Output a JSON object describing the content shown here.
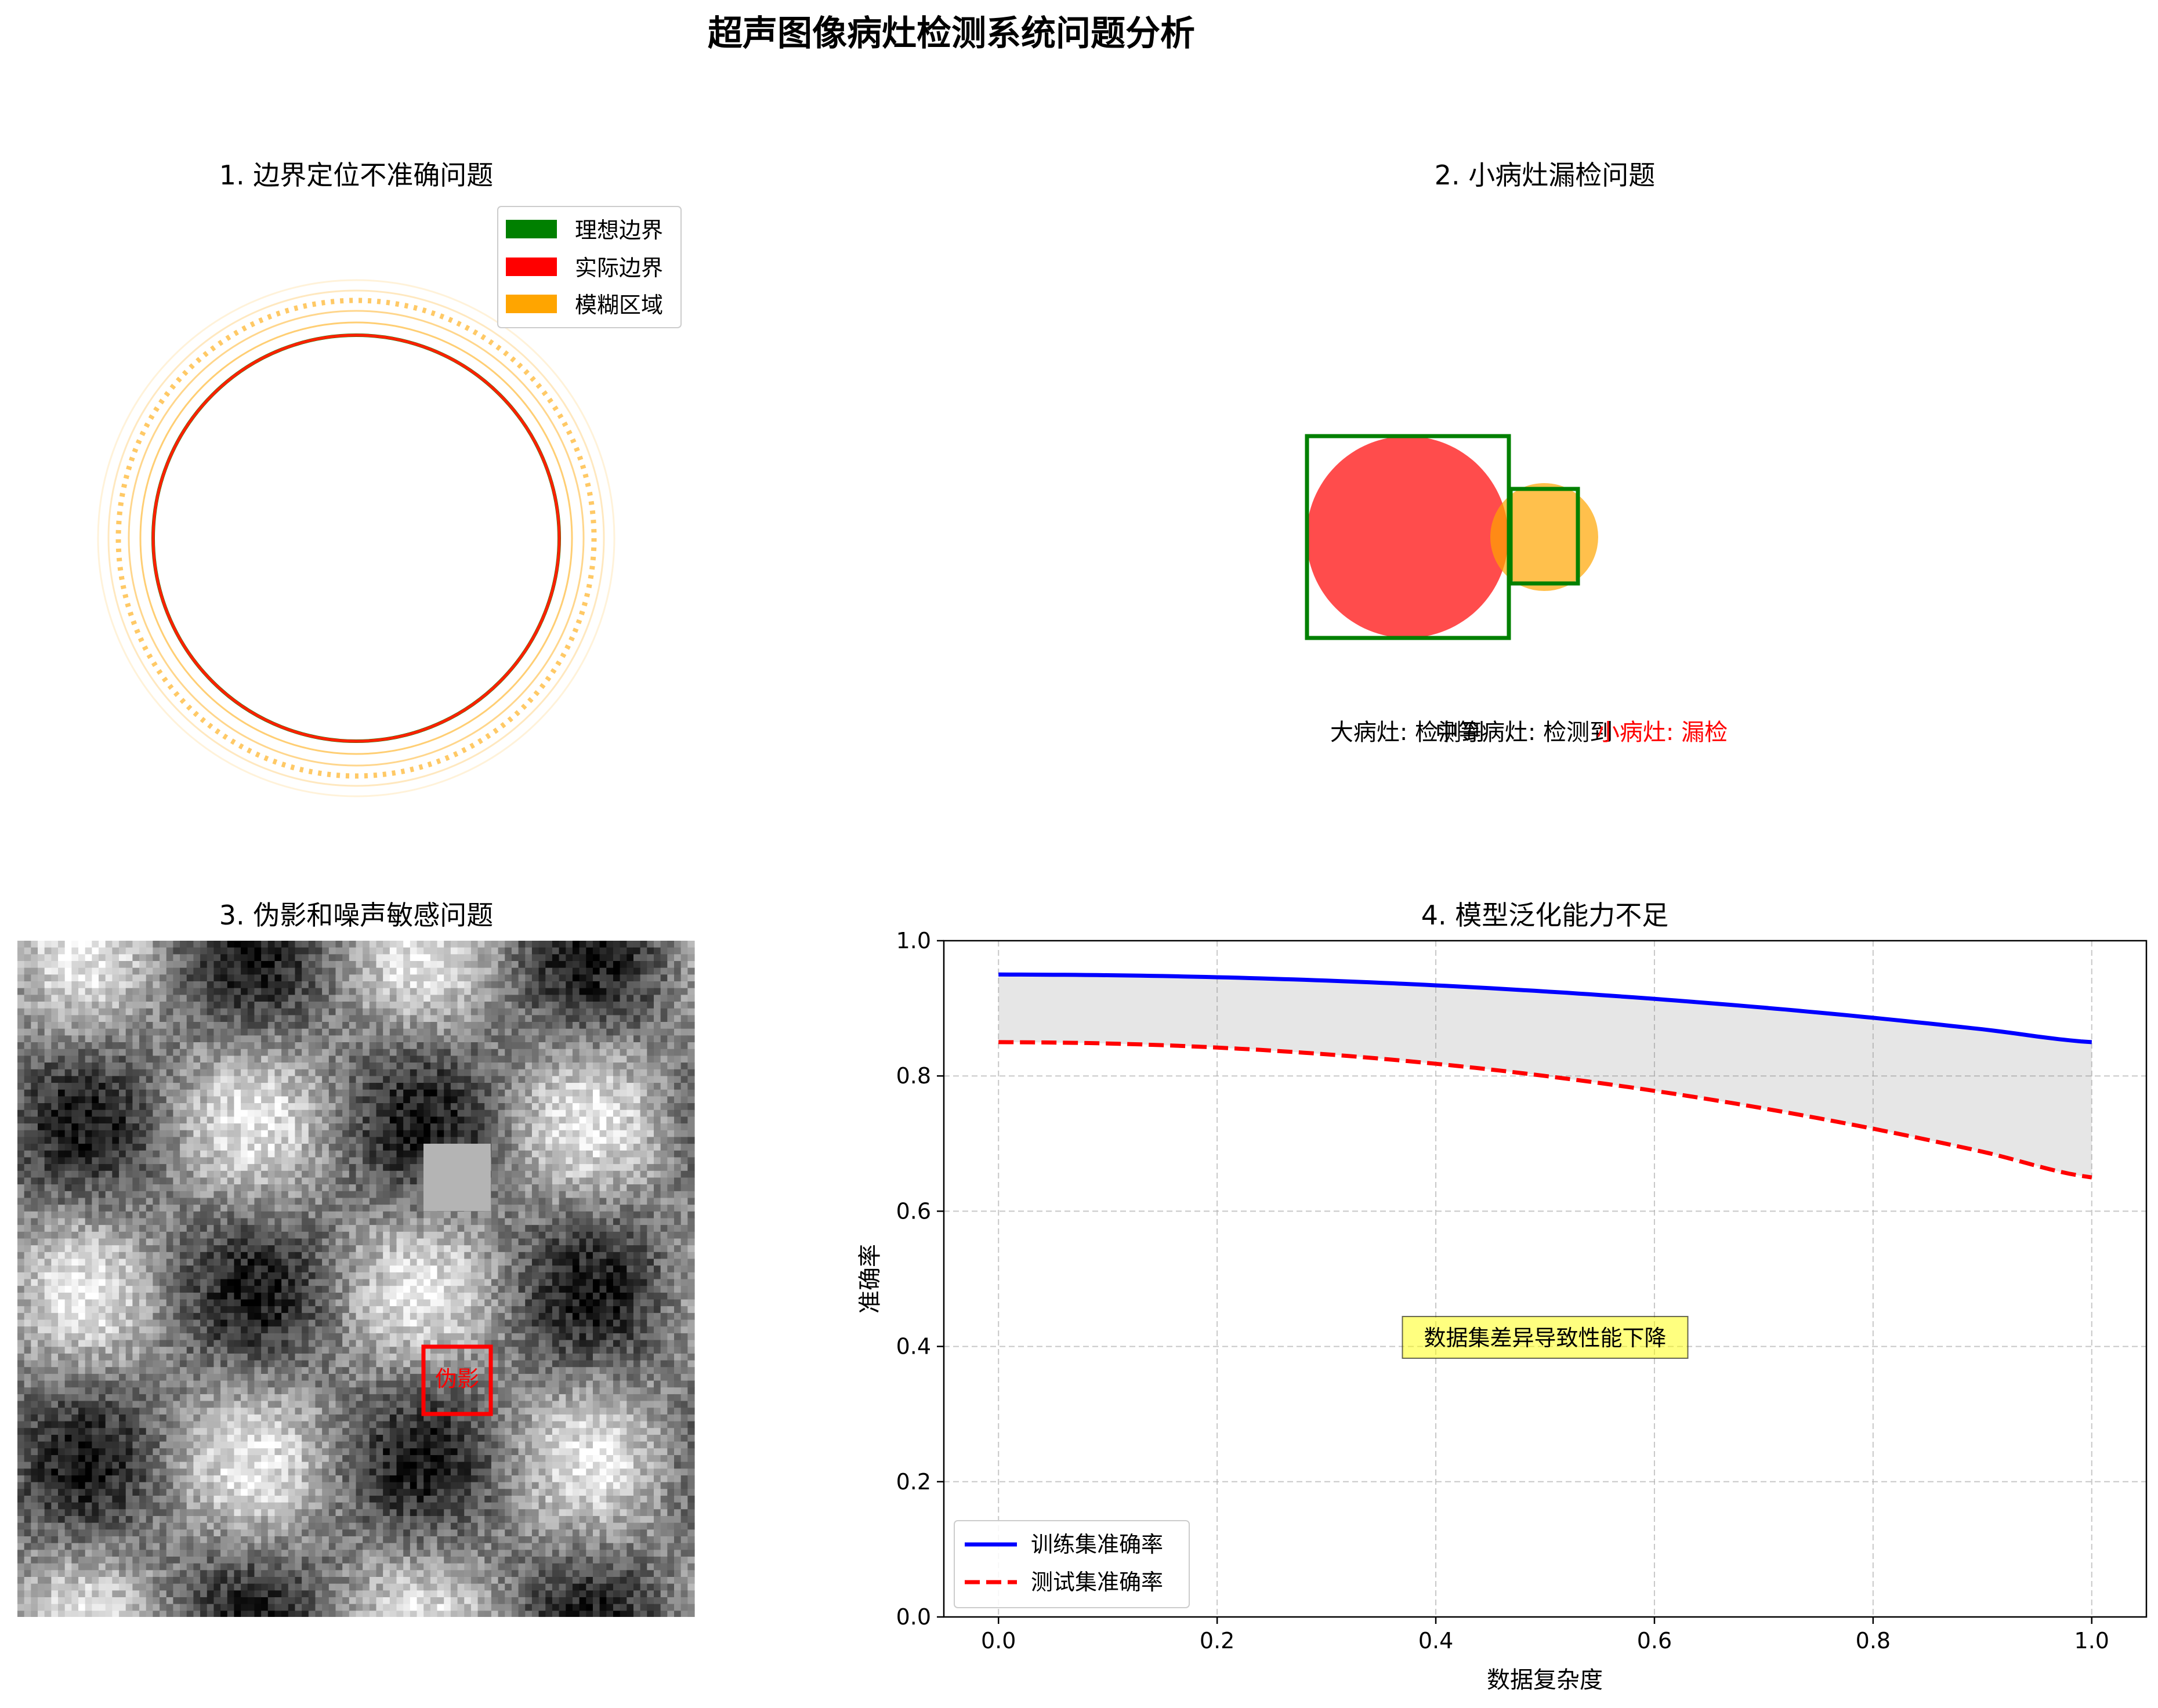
{
  "figure": {
    "title": "超声图像病灶检测系统问题分析"
  },
  "panel1": {
    "title": "1. 边界定位不准确问题",
    "legend": [
      {
        "label": "理想边界",
        "color": "#008000"
      },
      {
        "label": "实际边界",
        "color": "#ff0000"
      },
      {
        "label": "模糊区域",
        "color": "#ffa500"
      }
    ]
  },
  "panel2": {
    "title": "2. 小病灶漏检问题",
    "labels": [
      {
        "text": "大病灶: 检测到",
        "color": "#000000"
      },
      {
        "text": "中等病灶: 检测到",
        "color": "#000000"
      },
      {
        "text": "小病灶: 漏检",
        "color": "#ff0000"
      }
    ],
    "colors": {
      "large": "#ff0000",
      "medium": "#ffa500",
      "box": "#008000"
    }
  },
  "panel3": {
    "title": "3. 伪影和噪声敏感问题",
    "artifact_label": "伪影",
    "artifact_color": "#ff0000"
  },
  "chart_data": {
    "type": "line",
    "title": "4. 模型泛化能力不足",
    "xlabel": "数据复杂度",
    "ylabel": "准确率",
    "xlim": [
      -0.05,
      1.05
    ],
    "ylim": [
      0.0,
      1.0
    ],
    "xticks": [
      "0.0",
      "0.2",
      "0.4",
      "0.6",
      "0.8",
      "1.0"
    ],
    "yticks": [
      "0.0",
      "0.2",
      "0.4",
      "0.6",
      "0.8",
      "1.0"
    ],
    "grid": true,
    "legend_position": "lower-left",
    "x": [
      0.0,
      0.1,
      0.2,
      0.3,
      0.4,
      0.5,
      0.6,
      0.7,
      0.8,
      0.9,
      1.0
    ],
    "series": [
      {
        "name": "训练集准确率",
        "color": "#0000ff",
        "style": "solid",
        "values": [
          0.95,
          0.949,
          0.946,
          0.941,
          0.934,
          0.925,
          0.914,
          0.901,
          0.886,
          0.869,
          0.85
        ]
      },
      {
        "name": "测试集准确率",
        "color": "#ff0000",
        "style": "dashed",
        "values": [
          0.85,
          0.848,
          0.842,
          0.832,
          0.818,
          0.8,
          0.778,
          0.752,
          0.722,
          0.688,
          0.65
        ]
      }
    ],
    "fill_between": {
      "color": "#808080"
    },
    "annotation": {
      "text": "数据集差异导致性能下降",
      "x": 0.5,
      "y": 0.41,
      "bg": "#ffff00"
    }
  }
}
